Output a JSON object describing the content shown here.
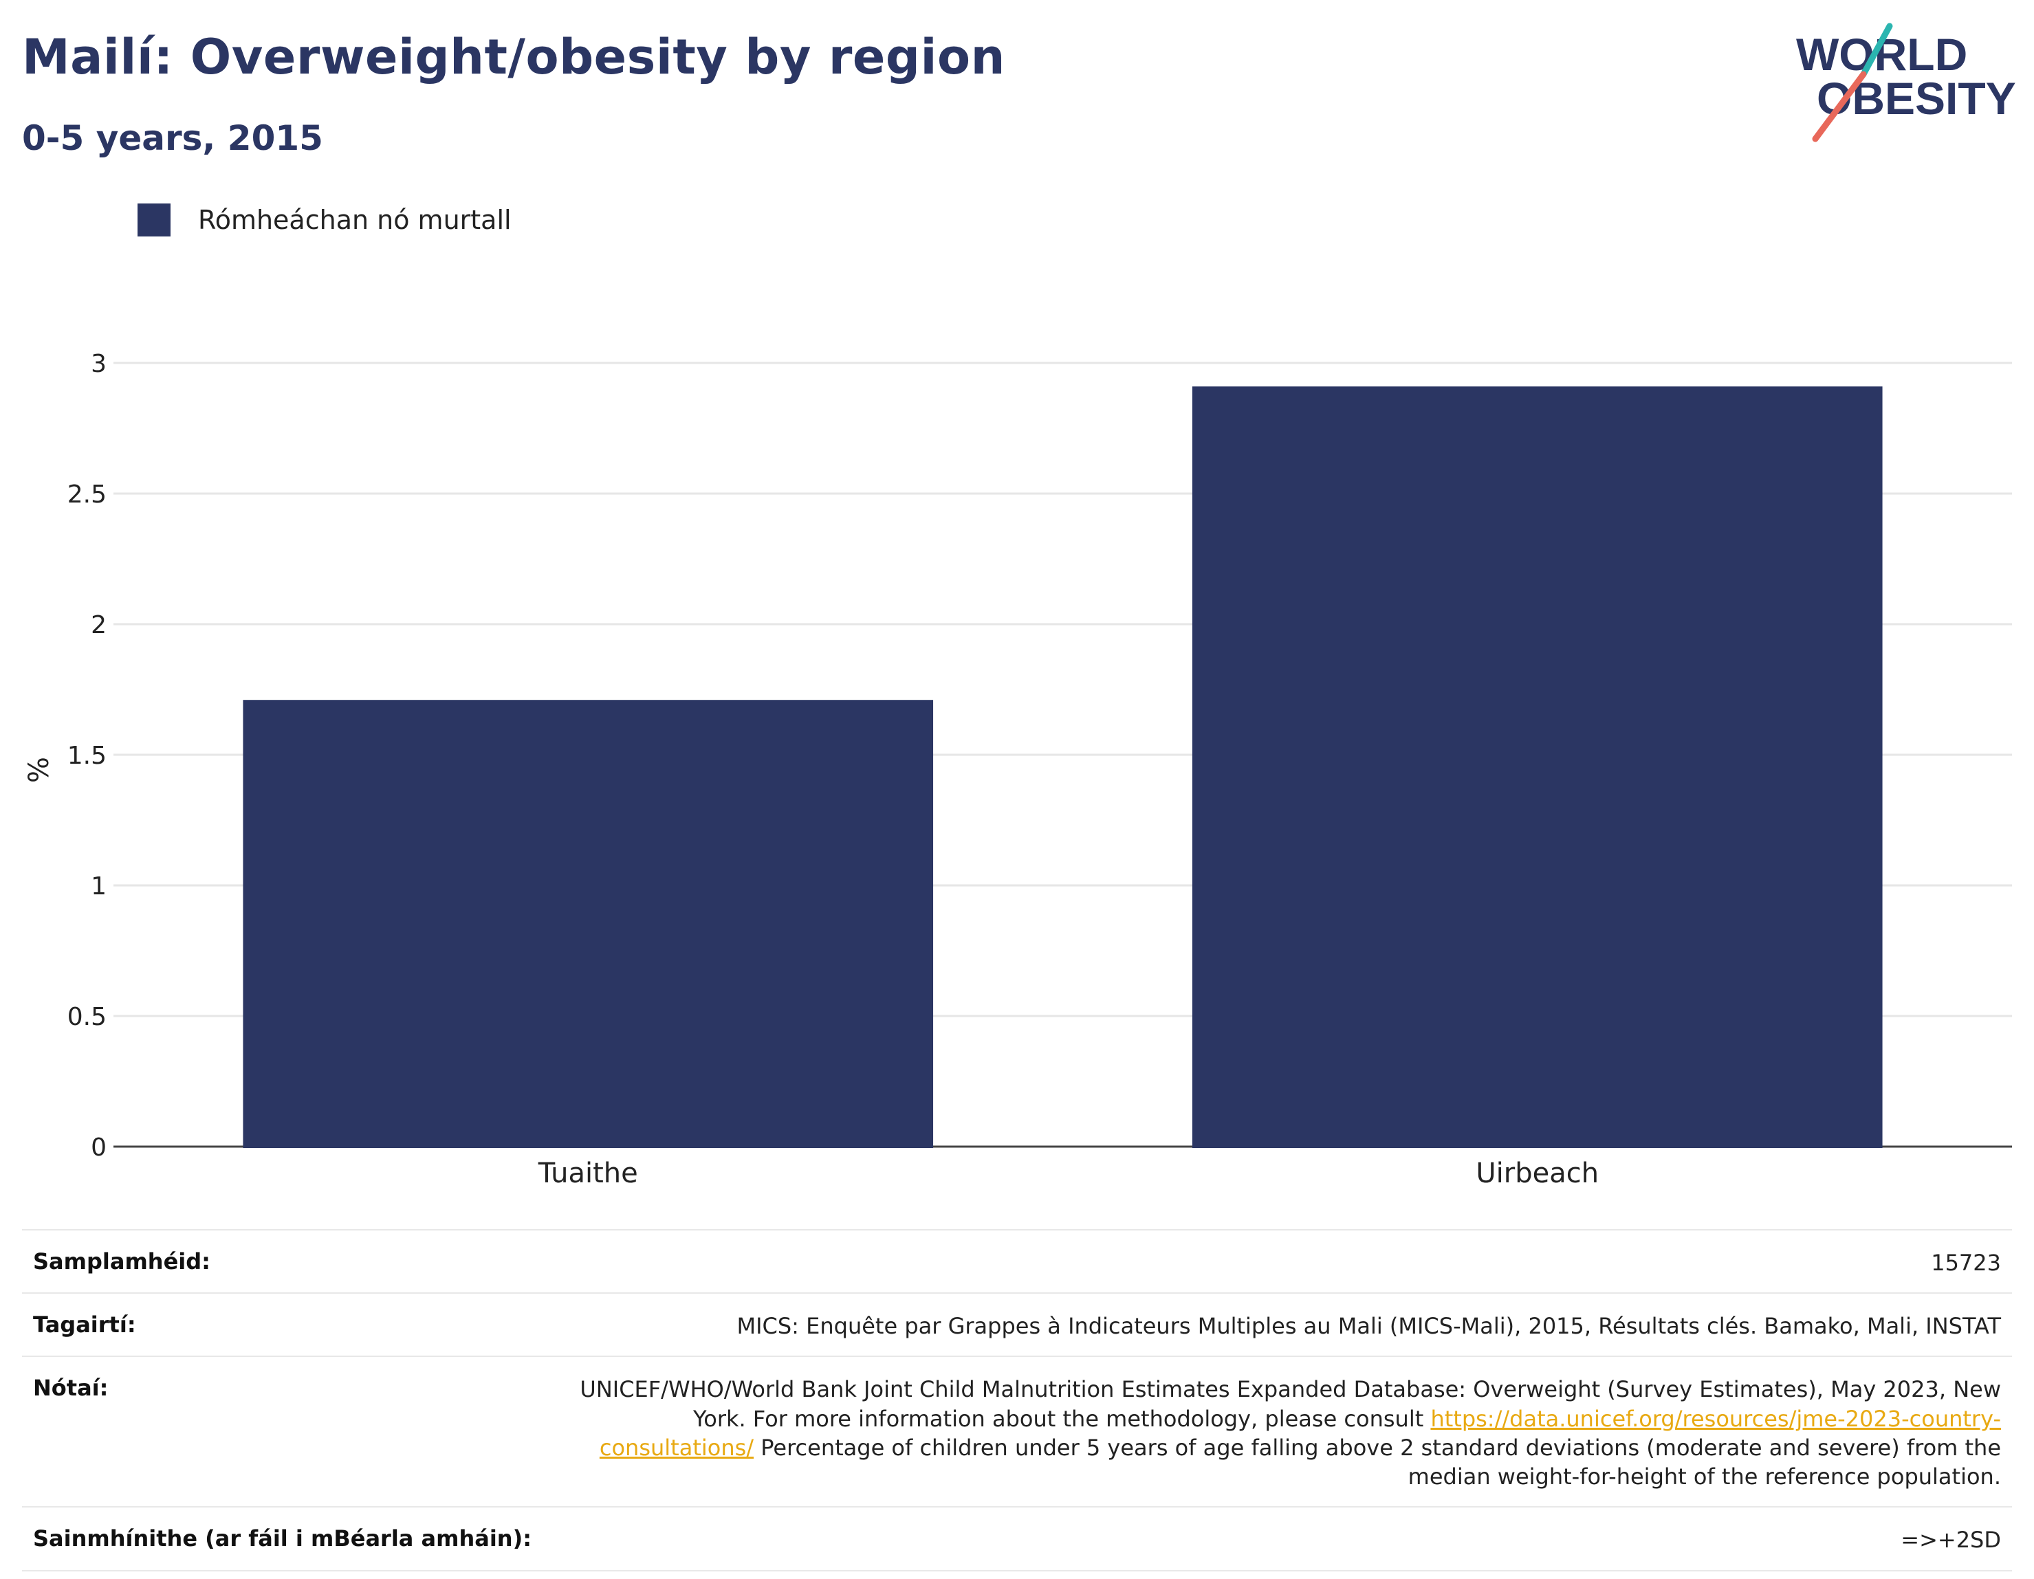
{
  "header": {
    "title": "Mailí: Overweight/obesity by region",
    "subtitle": "0-5 years, 2015"
  },
  "logo": {
    "line1": "WORLD",
    "line2": "OBESITY",
    "accent_colors": [
      "#2bb5b0",
      "#e8685a"
    ]
  },
  "legend": {
    "label": "Rómheáchan nó murtall",
    "color": "#2b3663"
  },
  "chart_data": {
    "type": "bar",
    "categories": [
      "Tuaithe",
      "Uirbeach"
    ],
    "series": [
      {
        "name": "Rómheáchan nó murtall",
        "values": [
          1.71,
          2.91
        ],
        "color": "#2b3663"
      }
    ],
    "xlabel": "",
    "ylabel": "%",
    "ylim": [
      0,
      3
    ],
    "yticks": [
      "0",
      "0.5",
      "1",
      "1.5",
      "2",
      "2.5",
      "3"
    ],
    "grid": true,
    "legend_position": "top-left"
  },
  "meta": {
    "sample_label": "Samplamhéid:",
    "sample_value": "15723",
    "references_label": "Tagairtí:",
    "references_value": "MICS: Enquête par Grappes à Indicateurs Multiples au Mali (MICS-Mali), 2015, Résultats clés. Bamako, Mali, INSTAT",
    "notes_label": "Nótaí:",
    "notes_text_1": "UNICEF/WHO/World Bank Joint Child Malnutrition Estimates Expanded Database: Overweight (Survey Estimates), May 2023, New York. For more information about the methodology, please consult",
    "notes_link": "https://data.unicef.org/resources/jme-2023-country-consultations/",
    "notes_text_2": "Percentage of children under 5 years of age falling above 2 standard deviations (moderate and severe) from the median weight-for-height of the reference population.",
    "definitions_label": "Sainmhínithe (ar fáil i mBéarla amháin):",
    "definitions_value": "=>+2SD"
  }
}
